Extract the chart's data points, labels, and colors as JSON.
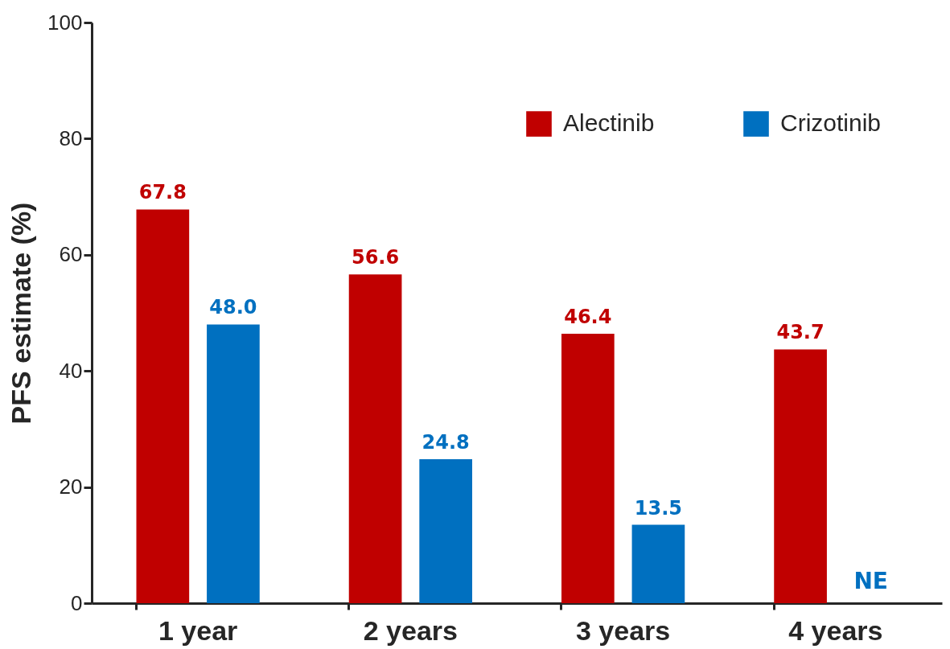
{
  "chart_data": {
    "type": "bar",
    "ylabel": "PFS estimate (%)",
    "categories": [
      "1 year",
      "2 years",
      "3 years",
      "4 years"
    ],
    "series": [
      {
        "name": "Alectinib",
        "color": "#c00000",
        "values": [
          67.8,
          56.6,
          46.4,
          43.7
        ],
        "value_labels": [
          "67.8",
          "56.6",
          "46.4",
          "43.7"
        ]
      },
      {
        "name": "Crizotinib",
        "color": "#0070c0",
        "values": [
          48.0,
          24.8,
          13.5,
          null
        ],
        "value_labels": [
          "48.0",
          "24.8",
          "13.5",
          "NE"
        ]
      }
    ],
    "ylim": [
      0,
      100
    ],
    "yticks": [
      0,
      20,
      40,
      60,
      80,
      100
    ],
    "grid": false,
    "legend": "top right"
  }
}
